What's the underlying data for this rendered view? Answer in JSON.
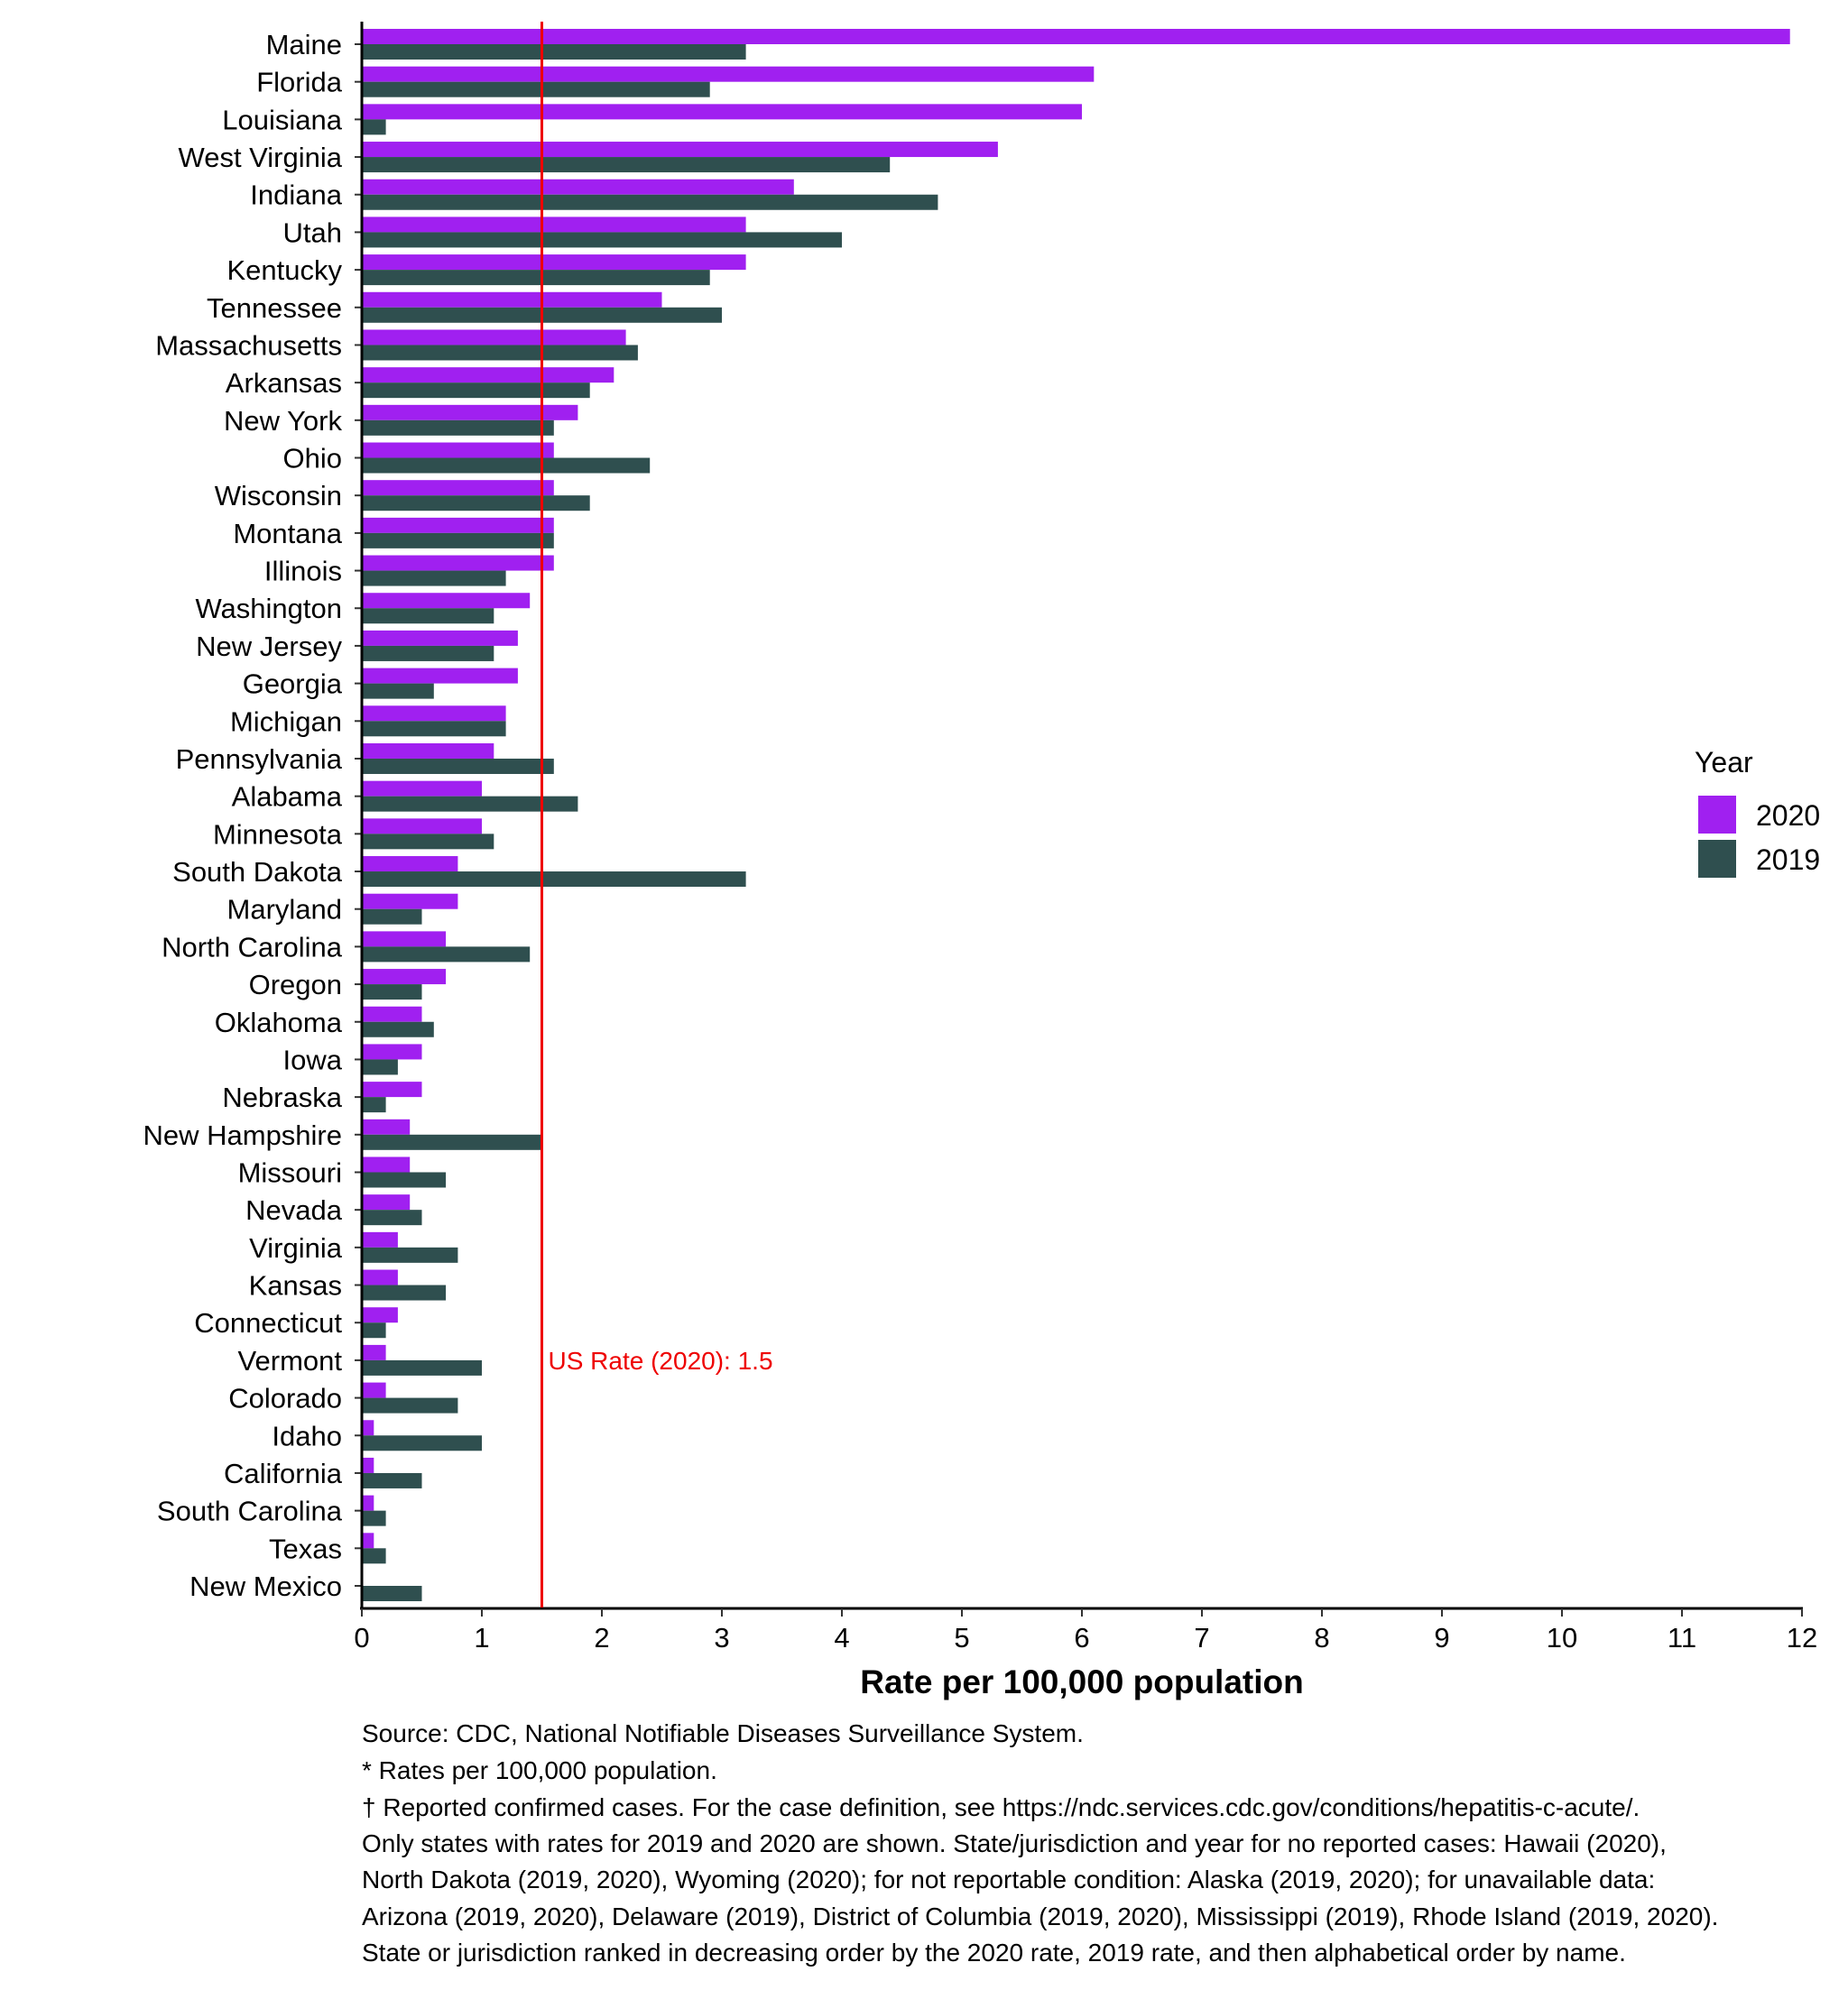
{
  "chart_data": {
    "type": "bar",
    "orientation": "horizontal",
    "xlabel": "Rate per 100,000 population",
    "ylabel": "",
    "xlim": [
      0,
      12
    ],
    "x_ticks": [
      "0",
      "1",
      "2",
      "3",
      "4",
      "5",
      "6",
      "7",
      "8",
      "9",
      "10",
      "11",
      "12"
    ],
    "grid": false,
    "legend": {
      "title": "Year",
      "position": "right"
    },
    "categories": [
      "Maine",
      "Florida",
      "Louisiana",
      "West Virginia",
      "Indiana",
      "Utah",
      "Kentucky",
      "Tennessee",
      "Massachusetts",
      "Arkansas",
      "New York",
      "Ohio",
      "Wisconsin",
      "Montana",
      "Illinois",
      "Washington",
      "New Jersey",
      "Georgia",
      "Michigan",
      "Pennsylvania",
      "Alabama",
      "Minnesota",
      "South Dakota",
      "Maryland",
      "North Carolina",
      "Oregon",
      "Oklahoma",
      "Iowa",
      "Nebraska",
      "New Hampshire",
      "Missouri",
      "Nevada",
      "Virginia",
      "Kansas",
      "Connecticut",
      "Vermont",
      "Colorado",
      "Idaho",
      "California",
      "South Carolina",
      "Texas",
      "New Mexico"
    ],
    "series": [
      {
        "name": "2020",
        "color": "#A020F0",
        "values": [
          11.9,
          6.1,
          6.0,
          5.3,
          3.6,
          3.2,
          3.2,
          2.5,
          2.2,
          2.1,
          1.8,
          1.6,
          1.6,
          1.6,
          1.6,
          1.4,
          1.3,
          1.3,
          1.2,
          1.1,
          1.0,
          1.0,
          0.8,
          0.8,
          0.7,
          0.7,
          0.5,
          0.5,
          0.5,
          0.4,
          0.4,
          0.4,
          0.3,
          0.3,
          0.3,
          0.2,
          0.2,
          0.1,
          0.1,
          0.1,
          0.1,
          0.0
        ]
      },
      {
        "name": "2019",
        "color": "#2F4F4F",
        "values": [
          3.2,
          2.9,
          0.2,
          4.4,
          4.8,
          4.0,
          2.9,
          3.0,
          2.3,
          1.9,
          1.6,
          2.4,
          1.9,
          1.6,
          1.2,
          1.1,
          1.1,
          0.6,
          1.2,
          1.6,
          1.8,
          1.1,
          3.2,
          0.5,
          1.4,
          0.5,
          0.6,
          0.3,
          0.2,
          1.5,
          0.7,
          0.5,
          0.8,
          0.7,
          0.2,
          1.0,
          0.8,
          1.0,
          0.5,
          0.2,
          0.2,
          0.5
        ]
      }
    ],
    "reference_line": {
      "value": 1.5,
      "label": "US Rate (2020): 1.5",
      "color": "#EE0000"
    }
  },
  "notes": [
    "Source: CDC, National Notifiable Diseases Surveillance System.",
    "* Rates per 100,000 population.",
    "† Reported confirmed cases. For the case definition, see https://ndc.services.cdc.gov/conditions/hepatitis-c-acute/.",
    "Only states with rates for 2019 and 2020 are shown. State/jurisdiction and year for no reported cases: Hawaii (2020),",
    "North Dakota (2019, 2020), Wyoming (2020); for not reportable condition: Alaska (2019, 2020); for unavailable data:",
    "Arizona (2019, 2020), Delaware (2019), District of Columbia (2019, 2020), Mississippi (2019), Rhode Island (2019, 2020).",
    "State or jurisdiction ranked in decreasing order by the 2020 rate, 2019 rate, and then alphabetical order by name."
  ]
}
